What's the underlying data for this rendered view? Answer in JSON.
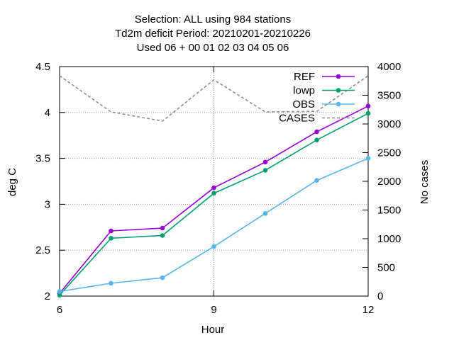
{
  "chart_data": {
    "type": "line",
    "title_lines": [
      "Selection: ALL using   984 stations",
      "Td2m deficit   Period: 20210201-20210226",
      "Used  06  + 00 01 02 03 04 05 06"
    ],
    "xlabel": "Hour",
    "ylabel": "deg C",
    "y2label": "No cases",
    "xlim": [
      6,
      12
    ],
    "ylim": [
      2,
      4.5
    ],
    "y2lim": [
      0,
      4000
    ],
    "xticks": [
      6,
      9,
      12
    ],
    "yticks": [
      2,
      2.5,
      3,
      3.5,
      4,
      4.5
    ],
    "y2ticks": [
      0,
      500,
      1000,
      1500,
      2000,
      2500,
      3000,
      3500,
      4000
    ],
    "grid": true,
    "legend_position": "top-right",
    "x": [
      6,
      7,
      8,
      9,
      10,
      11,
      12
    ],
    "series": [
      {
        "name": "REF",
        "axis": "y",
        "color": "#9400d3",
        "style": "solid",
        "values": [
          2.03,
          2.71,
          2.74,
          3.18,
          3.46,
          3.79,
          4.07
        ]
      },
      {
        "name": "lowp",
        "axis": "y",
        "color": "#009e73",
        "style": "solid",
        "values": [
          2.01,
          2.63,
          2.66,
          3.12,
          3.37,
          3.7,
          3.99
        ]
      },
      {
        "name": "OBS",
        "axis": "y",
        "color": "#56b4e9",
        "style": "solid",
        "values": [
          2.05,
          2.14,
          2.2,
          2.54,
          2.9,
          3.26,
          3.5
        ]
      },
      {
        "name": "CASES",
        "axis": "y2",
        "color": "#8c8c8c",
        "style": "dashed",
        "values": [
          3840,
          3210,
          3050,
          3770,
          3210,
          3220,
          3840
        ]
      }
    ]
  }
}
